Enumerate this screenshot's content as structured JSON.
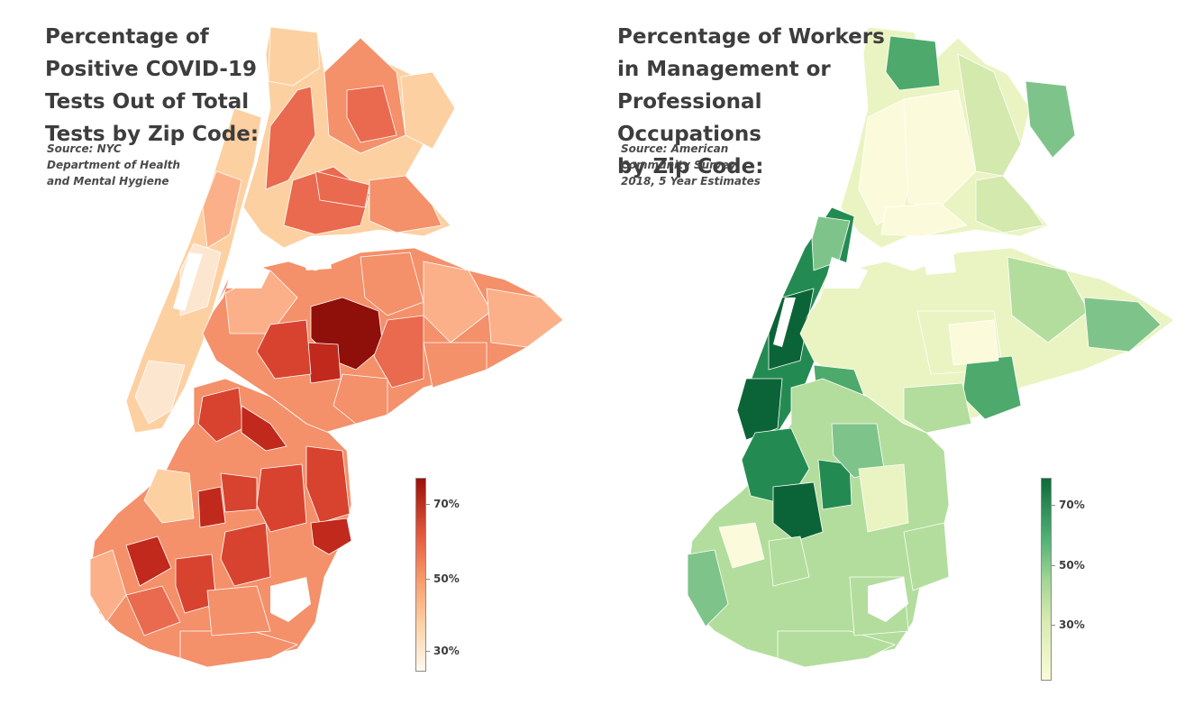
{
  "left_map": {
    "title": "Percentage of\nPositive COVID-19\nTests Out of Total\nTests by Zip Code:",
    "source": "Source: NYC\nDepartment of Health\nand Mental Hygiene",
    "legend": {
      "ticks": [
        "70%",
        "50%",
        "30%"
      ],
      "colors": [
        "#fff8f0",
        "#fdd0a2",
        "#f89a6a",
        "#e55a3e",
        "#9b1009"
      ]
    },
    "region_colors": {
      "very_light": "#fde6cf",
      "light": "#fdd0a2",
      "light_mid": "#fbb08a",
      "mid": "#f4906a",
      "mid_dark": "#e96a4e",
      "dark": "#d8432f",
      "darker": "#c0291c",
      "darkest": "#8f0f0a"
    }
  },
  "right_map": {
    "title": "Percentage of Workers\nin Management or\nProfessional Occupations\nby Zip Code:",
    "source": "Source: American\nCommunity Survey\n2018, 5 Year Estimates",
    "legend": {
      "ticks": [
        "70%",
        "50%",
        "30%"
      ],
      "colors": [
        "#fafbd7",
        "#d8eab0",
        "#9fd595",
        "#52b175",
        "#0d6b3b"
      ]
    },
    "region_colors": {
      "very_light": "#fbfbdc",
      "light": "#eaf4c2",
      "light_mid": "#d3e9ad",
      "mid": "#b3dd9c",
      "mid_dark": "#7ec48a",
      "dark": "#4ea96c",
      "darker": "#238b52",
      "darkest": "#0b6437"
    }
  }
}
